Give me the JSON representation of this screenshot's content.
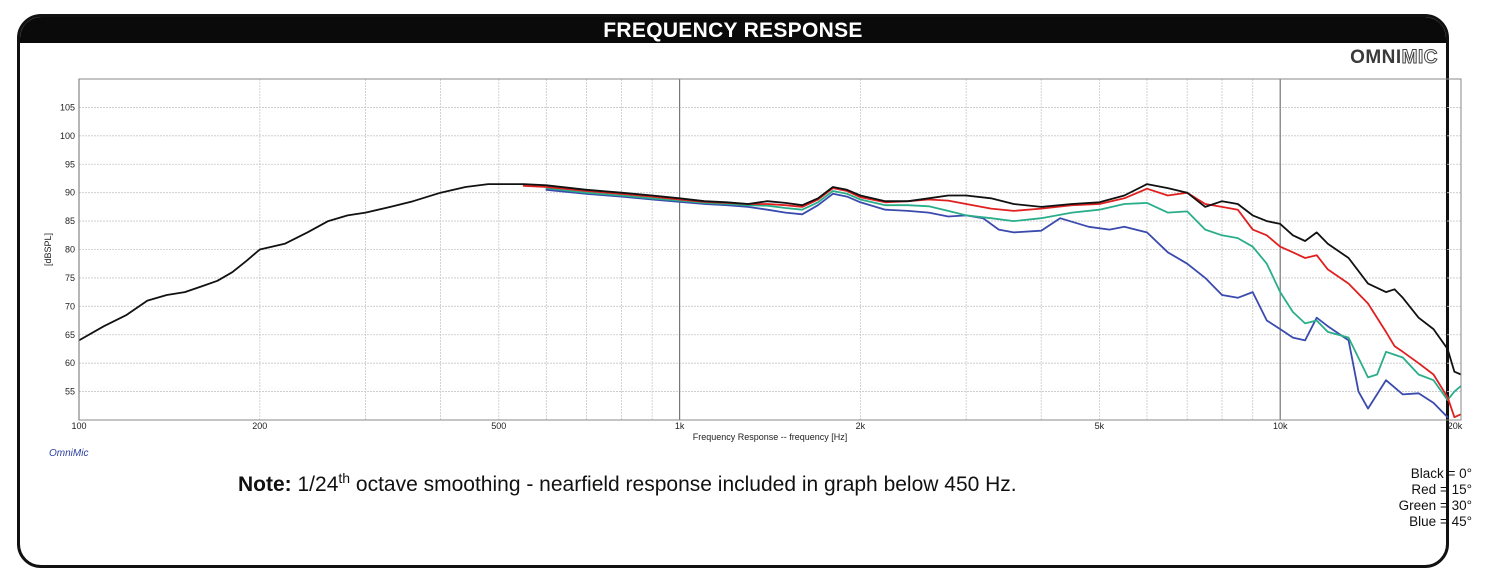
{
  "title": "FREQUENCY RESPONSE",
  "brand": {
    "part1": "OMNI",
    "part2": "MIC"
  },
  "software_label": "OmniMic",
  "note": {
    "bold": "Note:",
    "prefix": " 1/24",
    "sup": "th",
    "rest": " octave smoothing - nearfield response included in graph below 450 Hz."
  },
  "legend": [
    "Black = 0°",
    "Red = 15°",
    "Green = 30°",
    "Blue = 45°"
  ],
  "chart_data": {
    "type": "line",
    "xlabel": "Frequency Response -- frequency [Hz]",
    "ylabel": "[dBSPL]",
    "x_scale": "log",
    "xlim": [
      100,
      20000
    ],
    "ylim": [
      50,
      110
    ],
    "x_ticks": [
      100,
      200,
      500,
      1000,
      2000,
      5000,
      10000,
      20000
    ],
    "x_tick_labels": [
      "100",
      "200",
      "500",
      "1k",
      "2k",
      "5k",
      "10k",
      "20k"
    ],
    "y_ticks": [
      55,
      60,
      65,
      70,
      75,
      80,
      85,
      90,
      95,
      100,
      105
    ],
    "grid": true,
    "series": [
      {
        "name": "Black = 0°",
        "color": "#111111",
        "points": [
          [
            100,
            64
          ],
          [
            110,
            66.5
          ],
          [
            120,
            68.5
          ],
          [
            130,
            71
          ],
          [
            140,
            72
          ],
          [
            150,
            72.5
          ],
          [
            160,
            73.5
          ],
          [
            170,
            74.5
          ],
          [
            180,
            76
          ],
          [
            190,
            78
          ],
          [
            200,
            80
          ],
          [
            220,
            81
          ],
          [
            240,
            83
          ],
          [
            260,
            85
          ],
          [
            280,
            86
          ],
          [
            300,
            86.5
          ],
          [
            330,
            87.5
          ],
          [
            360,
            88.5
          ],
          [
            400,
            90
          ],
          [
            440,
            91
          ],
          [
            480,
            91.5
          ],
          [
            550,
            91.5
          ],
          [
            600,
            91.3
          ],
          [
            700,
            90.5
          ],
          [
            800,
            90
          ],
          [
            900,
            89.5
          ],
          [
            1000,
            89
          ],
          [
            1100,
            88.5
          ],
          [
            1200,
            88.3
          ],
          [
            1300,
            88
          ],
          [
            1400,
            88.5
          ],
          [
            1500,
            88.2
          ],
          [
            1600,
            87.8
          ],
          [
            1700,
            89
          ],
          [
            1800,
            91
          ],
          [
            1900,
            90.5
          ],
          [
            2000,
            89.5
          ],
          [
            2200,
            88.5
          ],
          [
            2400,
            88.5
          ],
          [
            2600,
            89
          ],
          [
            2800,
            89.5
          ],
          [
            3000,
            89.5
          ],
          [
            3300,
            89
          ],
          [
            3600,
            88
          ],
          [
            4000,
            87.5
          ],
          [
            4500,
            88
          ],
          [
            5000,
            88.3
          ],
          [
            5500,
            89.5
          ],
          [
            6000,
            91.5
          ],
          [
            6500,
            90.8
          ],
          [
            7000,
            90
          ],
          [
            7500,
            87.5
          ],
          [
            8000,
            88.5
          ],
          [
            8500,
            88
          ],
          [
            9000,
            86
          ],
          [
            9500,
            85
          ],
          [
            10000,
            84.5
          ],
          [
            10500,
            82.5
          ],
          [
            11000,
            81.5
          ],
          [
            11500,
            83
          ],
          [
            12000,
            81
          ],
          [
            13000,
            78.5
          ],
          [
            14000,
            74
          ],
          [
            15000,
            72.5
          ],
          [
            15500,
            73
          ],
          [
            16000,
            71.5
          ],
          [
            17000,
            68
          ],
          [
            18000,
            66
          ],
          [
            19000,
            62.5
          ],
          [
            19500,
            58.5
          ],
          [
            20000,
            58
          ]
        ]
      },
      {
        "name": "Red = 15°",
        "color": "#e02020",
        "points": [
          [
            550,
            91.2
          ],
          [
            600,
            91
          ],
          [
            700,
            90.3
          ],
          [
            800,
            89.8
          ],
          [
            900,
            89.3
          ],
          [
            1000,
            88.8
          ],
          [
            1100,
            88.4
          ],
          [
            1200,
            88.2
          ],
          [
            1300,
            88
          ],
          [
            1400,
            88
          ],
          [
            1500,
            87.8
          ],
          [
            1600,
            87.5
          ],
          [
            1700,
            88.8
          ],
          [
            1800,
            90.8
          ],
          [
            1900,
            90.3
          ],
          [
            2000,
            89.2
          ],
          [
            2200,
            88.3
          ],
          [
            2400,
            88.5
          ],
          [
            2600,
            88.8
          ],
          [
            2800,
            88.6
          ],
          [
            3000,
            88
          ],
          [
            3300,
            87.2
          ],
          [
            3600,
            86.8
          ],
          [
            4000,
            87.2
          ],
          [
            4500,
            87.8
          ],
          [
            5000,
            88
          ],
          [
            5500,
            89
          ],
          [
            6000,
            90.7
          ],
          [
            6500,
            89.5
          ],
          [
            7000,
            90
          ],
          [
            7500,
            88
          ],
          [
            8000,
            87.5
          ],
          [
            8500,
            87
          ],
          [
            9000,
            83.5
          ],
          [
            9500,
            82.5
          ],
          [
            10000,
            80.5
          ],
          [
            10500,
            79.5
          ],
          [
            11000,
            78.5
          ],
          [
            11500,
            79
          ],
          [
            12000,
            76.5
          ],
          [
            13000,
            74
          ],
          [
            14000,
            70.5
          ],
          [
            15000,
            65.5
          ],
          [
            15500,
            63
          ],
          [
            16000,
            62
          ],
          [
            17000,
            60
          ],
          [
            18000,
            58
          ],
          [
            19000,
            54
          ],
          [
            19500,
            50.5
          ],
          [
            20000,
            51
          ]
        ]
      },
      {
        "name": "Green = 30°",
        "color": "#2aae8a",
        "points": [
          [
            600,
            90.8
          ],
          [
            700,
            90
          ],
          [
            800,
            89.5
          ],
          [
            900,
            89
          ],
          [
            1000,
            88.6
          ],
          [
            1100,
            88.2
          ],
          [
            1200,
            88
          ],
          [
            1300,
            87.8
          ],
          [
            1400,
            87.7
          ],
          [
            1500,
            87.3
          ],
          [
            1600,
            87
          ],
          [
            1700,
            88.3
          ],
          [
            1800,
            90.3
          ],
          [
            1900,
            89.8
          ],
          [
            2000,
            88.8
          ],
          [
            2200,
            87.8
          ],
          [
            2400,
            87.8
          ],
          [
            2600,
            87.6
          ],
          [
            2800,
            86.8
          ],
          [
            3000,
            86
          ],
          [
            3300,
            85.5
          ],
          [
            3600,
            85
          ],
          [
            4000,
            85.5
          ],
          [
            4500,
            86.5
          ],
          [
            5000,
            87
          ],
          [
            5500,
            88
          ],
          [
            6000,
            88.2
          ],
          [
            6500,
            86.5
          ],
          [
            7000,
            86.7
          ],
          [
            7500,
            83.5
          ],
          [
            8000,
            82.5
          ],
          [
            8500,
            82
          ],
          [
            9000,
            80.5
          ],
          [
            9500,
            77.5
          ],
          [
            10000,
            72.5
          ],
          [
            10500,
            69
          ],
          [
            11000,
            67
          ],
          [
            11500,
            67.5
          ],
          [
            12000,
            65.5
          ],
          [
            13000,
            64.5
          ],
          [
            14000,
            57.5
          ],
          [
            14500,
            58
          ],
          [
            15000,
            62
          ],
          [
            16000,
            61
          ],
          [
            17000,
            58
          ],
          [
            18000,
            57
          ],
          [
            19000,
            53.5
          ],
          [
            19500,
            55
          ],
          [
            20000,
            56
          ]
        ]
      },
      {
        "name": "Blue = 45°",
        "color": "#3a4aad",
        "points": [
          [
            600,
            90.5
          ],
          [
            700,
            89.8
          ],
          [
            800,
            89.3
          ],
          [
            900,
            88.8
          ],
          [
            1000,
            88.4
          ],
          [
            1100,
            88
          ],
          [
            1200,
            87.8
          ],
          [
            1300,
            87.5
          ],
          [
            1400,
            87
          ],
          [
            1500,
            86.5
          ],
          [
            1600,
            86.2
          ],
          [
            1700,
            87.8
          ],
          [
            1800,
            89.8
          ],
          [
            1900,
            89.3
          ],
          [
            2000,
            88.3
          ],
          [
            2200,
            87
          ],
          [
            2400,
            86.8
          ],
          [
            2600,
            86.5
          ],
          [
            2800,
            85.8
          ],
          [
            3000,
            86
          ],
          [
            3200,
            85.5
          ],
          [
            3400,
            83.5
          ],
          [
            3600,
            83
          ],
          [
            4000,
            83.3
          ],
          [
            4300,
            85.5
          ],
          [
            4800,
            84
          ],
          [
            5200,
            83.5
          ],
          [
            5500,
            84
          ],
          [
            6000,
            83
          ],
          [
            6500,
            79.5
          ],
          [
            7000,
            77.5
          ],
          [
            7500,
            75
          ],
          [
            8000,
            72
          ],
          [
            8500,
            71.5
          ],
          [
            9000,
            72.5
          ],
          [
            9500,
            67.5
          ],
          [
            10000,
            66
          ],
          [
            10500,
            64.5
          ],
          [
            11000,
            64
          ],
          [
            11500,
            68
          ],
          [
            12000,
            66.5
          ],
          [
            13000,
            64
          ],
          [
            13500,
            55
          ],
          [
            14000,
            52
          ],
          [
            15000,
            57
          ],
          [
            16000,
            54.5
          ],
          [
            17000,
            54.7
          ],
          [
            18000,
            53
          ],
          [
            19000,
            50.5
          ]
        ]
      }
    ]
  }
}
